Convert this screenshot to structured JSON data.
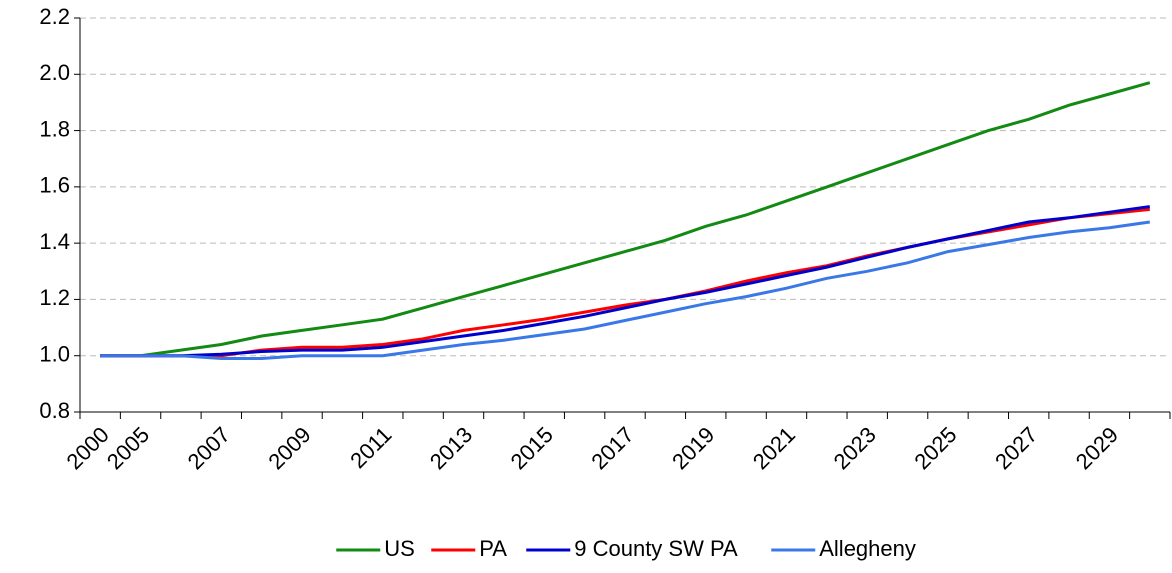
{
  "chart_data": {
    "type": "line",
    "categories": [
      "2000",
      "2005",
      null,
      "2007",
      null,
      "2009",
      null,
      "2011",
      null,
      "2013",
      null,
      "2015",
      null,
      "2017",
      null,
      "2019",
      null,
      "2021",
      null,
      "2023",
      null,
      "2025",
      null,
      "2027",
      null,
      "2029",
      null
    ],
    "series": [
      {
        "name": "US",
        "color": "#138a13",
        "values": [
          1.0,
          1.0,
          1.02,
          1.04,
          1.07,
          1.09,
          1.11,
          1.13,
          1.17,
          1.21,
          1.25,
          1.29,
          1.33,
          1.37,
          1.41,
          1.46,
          1.5,
          1.55,
          1.6,
          1.65,
          1.7,
          1.75,
          1.8,
          1.84,
          1.89,
          1.93,
          1.97
        ]
      },
      {
        "name": "PA",
        "color": "#ff0000",
        "values": [
          1.0,
          1.0,
          1.0,
          1.0,
          1.02,
          1.03,
          1.03,
          1.04,
          1.06,
          1.09,
          1.11,
          1.13,
          1.155,
          1.18,
          1.2,
          1.23,
          1.265,
          1.295,
          1.32,
          1.355,
          1.385,
          1.415,
          1.44,
          1.465,
          1.49,
          1.505,
          1.52
        ]
      },
      {
        "name": "9 County SW PA",
        "color": "#0000cc",
        "values": [
          1.0,
          1.0,
          1.0,
          1.005,
          1.015,
          1.02,
          1.02,
          1.03,
          1.05,
          1.07,
          1.09,
          1.115,
          1.14,
          1.17,
          1.2,
          1.225,
          1.255,
          1.285,
          1.315,
          1.35,
          1.385,
          1.415,
          1.445,
          1.475,
          1.49,
          1.51,
          1.53
        ]
      },
      {
        "name": "Allegheny",
        "color": "#3b78e7",
        "values": [
          1.0,
          1.0,
          1.0,
          0.99,
          0.99,
          1.0,
          1.0,
          1.0,
          1.02,
          1.04,
          1.055,
          1.075,
          1.095,
          1.125,
          1.155,
          1.185,
          1.21,
          1.24,
          1.275,
          1.3,
          1.33,
          1.37,
          1.395,
          1.42,
          1.44,
          1.455,
          1.475
        ]
      }
    ],
    "ylim": [
      0.8,
      2.2
    ],
    "yticks": [
      0.8,
      {
        "value": 1.0,
        "label": "1.0"
      },
      1.2,
      1.4,
      1.6,
      1.8,
      {
        "value": 2.0,
        "label": "2.0"
      },
      2.2
    ],
    "grid": true,
    "legend": "bottom"
  }
}
